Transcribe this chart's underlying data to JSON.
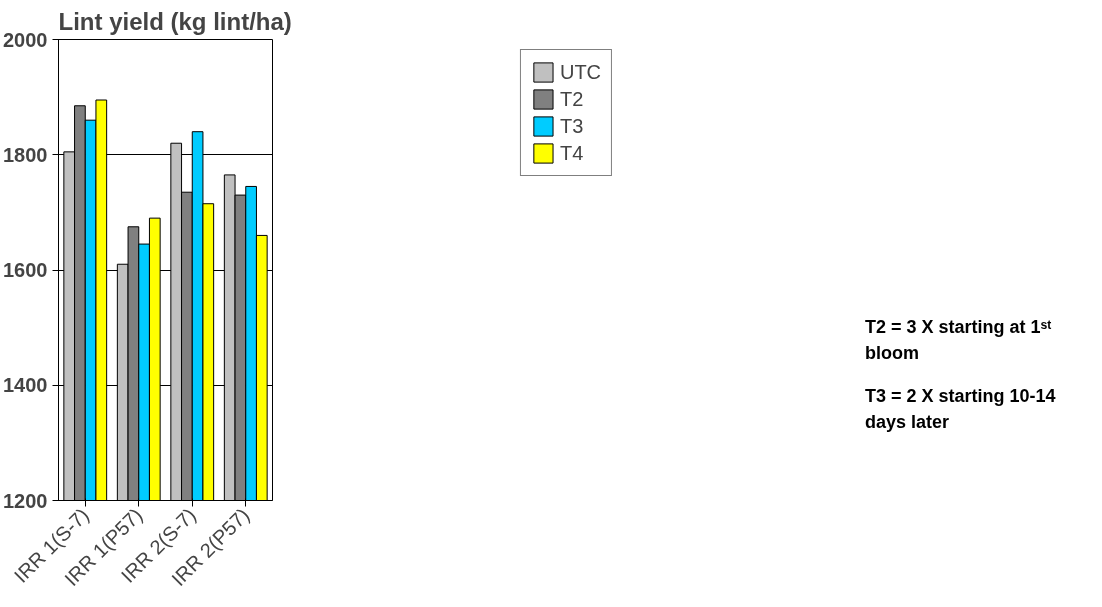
{
  "chart_data": {
    "type": "bar",
    "title": "Lint yield (kg lint/ha)",
    "categories": [
      "IRR 1(S-7)",
      "IRR 1(P57)",
      "IRR 2(S-7)",
      "IRR 2(P57)"
    ],
    "series": [
      {
        "name": "UTC",
        "color": "#c0c0c0",
        "values": [
          1805,
          1610,
          1820,
          1765
        ]
      },
      {
        "name": "T2",
        "color": "#808080",
        "values": [
          1885,
          1675,
          1735,
          1730
        ]
      },
      {
        "name": "T3",
        "color": "#00ccff",
        "values": [
          1860,
          1645,
          1840,
          1745
        ]
      },
      {
        "name": "T4",
        "color": "#ffff00",
        "values": [
          1895,
          1690,
          1715,
          1660
        ]
      }
    ],
    "ylim": [
      1200,
      2000
    ],
    "yticks": [
      1200,
      1400,
      1600,
      1800,
      2000
    ],
    "grid": "y",
    "legend": "top right",
    "annotations": [
      "T2 = 3 X starting at 1ˢᵗ bloom",
      "T3 = 2 X starting 10-14 days later"
    ]
  }
}
